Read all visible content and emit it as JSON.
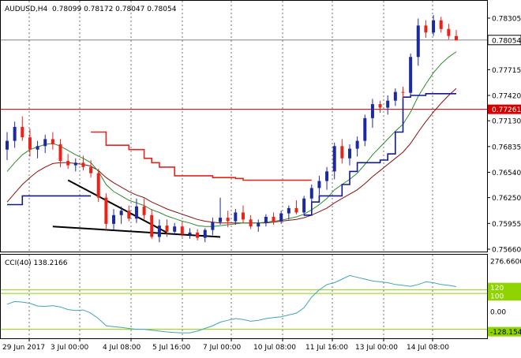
{
  "header": {
    "symbol": "AUDUSD,H4",
    "ohlc": "0.78099 0.78172 0.78047 0.78054"
  },
  "indicator": {
    "label": "CCI(40) 138.2166",
    "axis_max": "276.6600",
    "axis_zero": "0.00",
    "axis_min": "-128.1542",
    "level_upper_a": "120",
    "level_upper_b": "100",
    "level_lower": "-100"
  },
  "price_axis": {
    "labels": [
      "0.78305",
      "0.78054",
      "0.77715",
      "0.77420",
      "0.77261",
      "0.77130",
      "0.76835",
      "0.76540",
      "0.76250",
      "0.75955",
      "0.75660"
    ],
    "current_price": "0.78054",
    "hline_price": "0.77261"
  },
  "time_axis": {
    "labels": [
      "29 Jun 2017",
      "3 Jul 00:00",
      "4 Jul 08:00",
      "5 Jul 16:00",
      "7 Jul 00:00",
      "10 Jul 08:00",
      "11 Jul 16:00",
      "13 Jul 00:00",
      "14 Jul 08:00"
    ]
  },
  "colors": {
    "bull": "#1c2aa0",
    "bear": "#e8241a",
    "signal": "#e8241a",
    "ma_green": "#2e8b2e",
    "ma_red": "#8b1010",
    "blue_line": "#101a8c",
    "cci": "#3fa6b5",
    "cci_level": "#8fd400",
    "grid": "#c0c0c0"
  },
  "chart_data": {
    "type": "candlestick",
    "symbol": "AUDUSD",
    "timeframe": "H4",
    "ylim": [
      0.7566,
      0.7844
    ],
    "candles": [
      [
        0.768,
        0.77,
        0.7668,
        0.769
      ],
      [
        0.769,
        0.7712,
        0.7682,
        0.7706
      ],
      [
        0.7706,
        0.7718,
        0.769,
        0.7694
      ],
      [
        0.7694,
        0.7704,
        0.7672,
        0.768
      ],
      [
        0.768,
        0.769,
        0.767,
        0.7684
      ],
      [
        0.7684,
        0.7697,
        0.7676,
        0.7692
      ],
      [
        0.7692,
        0.77,
        0.768,
        0.7686
      ],
      [
        0.7686,
        0.7692,
        0.766,
        0.7667
      ],
      [
        0.7667,
        0.7675,
        0.7658,
        0.7662
      ],
      [
        0.7662,
        0.767,
        0.7655,
        0.7665
      ],
      [
        0.7665,
        0.7673,
        0.7656,
        0.766
      ],
      [
        0.766,
        0.7668,
        0.7648,
        0.7653
      ],
      [
        0.7653,
        0.7658,
        0.762,
        0.7625
      ],
      [
        0.7625,
        0.763,
        0.7588,
        0.7595
      ],
      [
        0.7595,
        0.7612,
        0.7588,
        0.7605
      ],
      [
        0.7605,
        0.7615,
        0.7595,
        0.761
      ],
      [
        0.761,
        0.7616,
        0.7598,
        0.7601
      ],
      [
        0.7601,
        0.7624,
        0.7596,
        0.7615
      ],
      [
        0.7615,
        0.7624,
        0.76,
        0.7605
      ],
      [
        0.7605,
        0.7612,
        0.7578,
        0.758
      ],
      [
        0.758,
        0.76,
        0.7574,
        0.7593
      ],
      [
        0.7593,
        0.76,
        0.758,
        0.7586
      ],
      [
        0.7586,
        0.7596,
        0.7582,
        0.7592
      ],
      [
        0.7592,
        0.7597,
        0.758,
        0.7583
      ],
      [
        0.7583,
        0.759,
        0.7578,
        0.7585
      ],
      [
        0.7585,
        0.7589,
        0.7576,
        0.7579
      ],
      [
        0.7579,
        0.759,
        0.7574,
        0.7588
      ],
      [
        0.7588,
        0.7602,
        0.7582,
        0.7597
      ],
      [
        0.7597,
        0.7625,
        0.7594,
        0.7602
      ],
      [
        0.7602,
        0.761,
        0.7591,
        0.7598
      ],
      [
        0.7598,
        0.7612,
        0.7594,
        0.7608
      ],
      [
        0.7608,
        0.7616,
        0.7596,
        0.76
      ],
      [
        0.76,
        0.7605,
        0.7589,
        0.7592
      ],
      [
        0.7592,
        0.76,
        0.7586,
        0.7596
      ],
      [
        0.7596,
        0.7606,
        0.7592,
        0.7603
      ],
      [
        0.7603,
        0.7608,
        0.7594,
        0.7598
      ],
      [
        0.7598,
        0.761,
        0.7595,
        0.7607
      ],
      [
        0.7607,
        0.7616,
        0.76,
        0.7613
      ],
      [
        0.7613,
        0.7622,
        0.7606,
        0.7608
      ],
      [
        0.7608,
        0.7627,
        0.7604,
        0.7624
      ],
      [
        0.7624,
        0.764,
        0.7617,
        0.7636
      ],
      [
        0.7636,
        0.765,
        0.7628,
        0.7644
      ],
      [
        0.7644,
        0.766,
        0.7634,
        0.7655
      ],
      [
        0.7655,
        0.7688,
        0.7646,
        0.7684
      ],
      [
        0.7684,
        0.7692,
        0.7664,
        0.767
      ],
      [
        0.767,
        0.7686,
        0.7662,
        0.7681
      ],
      [
        0.7681,
        0.7695,
        0.7672,
        0.769
      ],
      [
        0.769,
        0.772,
        0.7684,
        0.7716
      ],
      [
        0.7716,
        0.7738,
        0.7705,
        0.7732
      ],
      [
        0.7732,
        0.7736,
        0.7722,
        0.7728
      ],
      [
        0.7728,
        0.7742,
        0.772,
        0.7736
      ],
      [
        0.7736,
        0.775,
        0.773,
        0.7746
      ],
      [
        0.7746,
        0.7752,
        0.7738,
        0.7745
      ],
      [
        0.7745,
        0.779,
        0.774,
        0.7786
      ],
      [
        0.7786,
        0.783,
        0.7776,
        0.7822
      ],
      [
        0.7822,
        0.7828,
        0.7808,
        0.7814
      ],
      [
        0.7814,
        0.7834,
        0.781,
        0.7828
      ],
      [
        0.7828,
        0.7832,
        0.7814,
        0.7818
      ],
      [
        0.7818,
        0.7824,
        0.7806,
        0.781
      ],
      [
        0.781,
        0.7817,
        0.7805,
        0.7805
      ]
    ],
    "ma_green": [
      0.7655,
      0.7665,
      0.7674,
      0.768,
      0.7683,
      0.7686,
      0.7687,
      0.7684,
      0.7679,
      0.7674,
      0.767,
      0.7665,
      0.7655,
      0.764,
      0.7632,
      0.7627,
      0.7622,
      0.7619,
      0.7616,
      0.7611,
      0.7608,
      0.7604,
      0.7601,
      0.7598,
      0.7596,
      0.7593,
      0.7592,
      0.7592,
      0.7593,
      0.7594,
      0.7595,
      0.7596,
      0.7596,
      0.7596,
      0.7597,
      0.7598,
      0.7599,
      0.7601,
      0.7603,
      0.7606,
      0.7611,
      0.7617,
      0.7624,
      0.7634,
      0.764,
      0.7646,
      0.7653,
      0.7663,
      0.7674,
      0.7683,
      0.7692,
      0.7701,
      0.7709,
      0.7723,
      0.7741,
      0.7755,
      0.7768,
      0.7778,
      0.7786,
      0.7792
    ],
    "ma_red": [
      0.762,
      0.763,
      0.764,
      0.7648,
      0.7655,
      0.766,
      0.7664,
      0.7665,
      0.7665,
      0.7664,
      0.7663,
      0.7661,
      0.7656,
      0.7648,
      0.7642,
      0.7637,
      0.7632,
      0.7628,
      0.7625,
      0.762,
      0.7616,
      0.7612,
      0.7609,
      0.7606,
      0.7603,
      0.76,
      0.7598,
      0.7597,
      0.7596,
      0.7596,
      0.7596,
      0.7596,
      0.7596,
      0.7596,
      0.7596,
      0.7597,
      0.7598,
      0.7599,
      0.76,
      0.7602,
      0.7605,
      0.7609,
      0.7613,
      0.7619,
      0.7624,
      0.7629,
      0.7634,
      0.7641,
      0.7649,
      0.7656,
      0.7663,
      0.767,
      0.7677,
      0.7687,
      0.77,
      0.7712,
      0.7723,
      0.7733,
      0.7742,
      0.775
    ],
    "signal_red": [
      null,
      null,
      null,
      null,
      null,
      null,
      null,
      null,
      null,
      null,
      null,
      0.77,
      0.77,
      0.7685,
      0.7685,
      0.7685,
      0.768,
      0.768,
      0.767,
      0.7665,
      0.766,
      0.766,
      0.765,
      0.765,
      0.765,
      0.765,
      0.765,
      0.7648,
      0.7648,
      0.7648,
      0.7647,
      0.7645,
      0.7645,
      0.7645,
      0.7645,
      0.7645,
      0.7645,
      0.7645,
      0.7645,
      0.7645,
      0.7645,
      null,
      null,
      null,
      null,
      null,
      null,
      null,
      null,
      null,
      null,
      null,
      null,
      null,
      null,
      null,
      null,
      null,
      null,
      null
    ],
    "blue_line": [
      0.7617,
      0.7617,
      0.7627,
      0.7627,
      0.7627,
      0.7627,
      0.7627,
      0.7627,
      0.7627,
      0.7627,
      0.7627,
      0.7627,
      null,
      null,
      null,
      null,
      null,
      null,
      null,
      null,
      null,
      null,
      null,
      null,
      null,
      null,
      null,
      null,
      null,
      null,
      null,
      null,
      null,
      null,
      null,
      null,
      null,
      null,
      null,
      0.7605,
      0.762,
      0.7627,
      0.7627,
      0.7627,
      0.764,
      0.7655,
      0.7665,
      0.7665,
      0.7665,
      0.7668,
      0.7675,
      0.77,
      0.774,
      0.7742,
      0.7742,
      0.7744,
      0.7744,
      0.7744,
      0.7744,
      0.7744
    ],
    "trendlines": [
      {
        "from": [
          8,
          0.7645
        ],
        "to": [
          21,
          0.7585
        ]
      },
      {
        "from": [
          6,
          0.7592
        ],
        "to": [
          28,
          0.758
        ]
      }
    ],
    "hline": 0.77261,
    "cci": [
      40,
      55,
      52,
      45,
      30,
      28,
      32,
      25,
      10,
      5,
      8,
      -10,
      -40,
      -80,
      -85,
      -90,
      -95,
      -100,
      -100,
      -105,
      -110,
      -115,
      -118,
      -120,
      -120,
      -110,
      -95,
      -80,
      -60,
      -50,
      -40,
      -45,
      -55,
      -50,
      -40,
      -35,
      -30,
      -20,
      -10,
      20,
      80,
      120,
      150,
      160,
      180,
      200,
      190,
      180,
      170,
      165,
      160,
      150,
      145,
      140,
      150,
      165,
      160,
      150,
      145,
      138
    ]
  }
}
